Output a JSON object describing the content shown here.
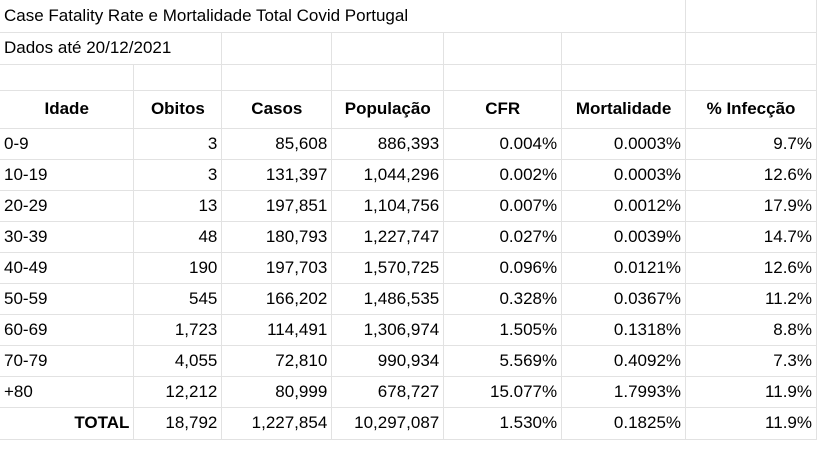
{
  "title": "Case Fatality Rate e Mortalidade Total Covid Portugal",
  "subtitle": "Dados até 20/12/2021",
  "headers": [
    "Idade",
    "Obitos",
    "Casos",
    "População",
    "CFR",
    "Mortalidade",
    "% Infecção"
  ],
  "rows": [
    [
      "0-9",
      "3",
      "85,608",
      "886,393",
      "0.004%",
      "0.0003%",
      "9.7%"
    ],
    [
      "10-19",
      "3",
      "131,397",
      "1,044,296",
      "0.002%",
      "0.0003%",
      "12.6%"
    ],
    [
      "20-29",
      "13",
      "197,851",
      "1,104,756",
      "0.007%",
      "0.0012%",
      "17.9%"
    ],
    [
      "30-39",
      "48",
      "180,793",
      "1,227,747",
      "0.027%",
      "0.0039%",
      "14.7%"
    ],
    [
      "40-49",
      "190",
      "197,703",
      "1,570,725",
      "0.096%",
      "0.0121%",
      "12.6%"
    ],
    [
      "50-59",
      "545",
      "166,202",
      "1,486,535",
      "0.328%",
      "0.0367%",
      "11.2%"
    ],
    [
      "60-69",
      "1,723",
      "114,491",
      "1,306,974",
      "1.505%",
      "0.1318%",
      "8.8%"
    ],
    [
      "70-79",
      "4,055",
      "72,810",
      "990,934",
      "5.569%",
      "0.4092%",
      "7.3%"
    ],
    [
      "+80",
      "12,212",
      "80,999",
      "678,727",
      "15.077%",
      "1.7993%",
      "11.9%"
    ]
  ],
  "total": [
    "TOTAL",
    "18,792",
    "1,227,854",
    "10,297,087",
    "1.530%",
    "0.1825%",
    "11.9%"
  ]
}
